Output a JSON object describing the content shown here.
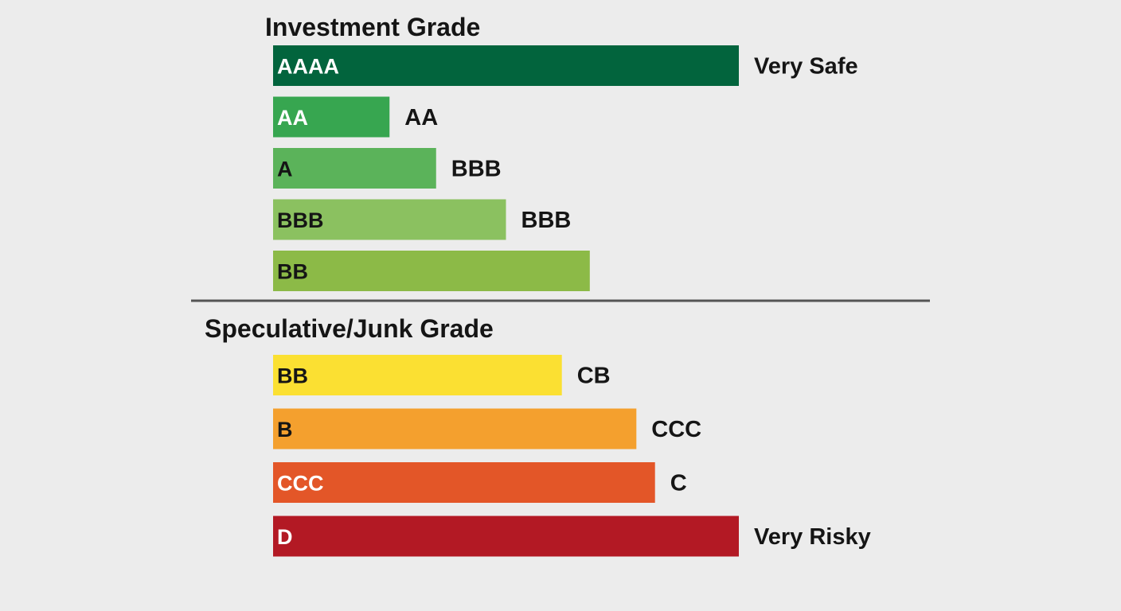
{
  "chart_data": {
    "type": "bar",
    "orientation": "horizontal",
    "groups": [
      {
        "title": "Investment Grade",
        "bars": [
          {
            "label": "AAAA",
            "value": 100,
            "side_label": "Very Safe",
            "color": "#02643d",
            "text_color": "#ffffff"
          },
          {
            "label": "AA",
            "value": 25,
            "side_label": "AA",
            "color": "#37a650",
            "text_color": "#ffffff"
          },
          {
            "label": "A",
            "value": 35,
            "side_label": "BBB",
            "color": "#5bb35a",
            "text_color": "#151515"
          },
          {
            "label": "BBB",
            "value": 50,
            "side_label": "BBB",
            "color": "#8bc160",
            "text_color": "#151515"
          },
          {
            "label": "BB",
            "value": 68,
            "side_label": "",
            "color": "#8cba47",
            "text_color": "#151515"
          }
        ]
      },
      {
        "title": "Speculative/Junk Grade",
        "bars": [
          {
            "label": "BB",
            "value": 62,
            "side_label": "CB",
            "color": "#fbe032",
            "text_color": "#151515"
          },
          {
            "label": "B",
            "value": 78,
            "side_label": "CCC",
            "color": "#f4a02e",
            "text_color": "#151515"
          },
          {
            "label": "CCC",
            "value": 82,
            "side_label": "C",
            "color": "#e35628",
            "text_color": "#ffffff"
          },
          {
            "label": "D",
            "value": 100,
            "side_label": "Very Risky",
            "color": "#b31924",
            "text_color": "#ffffff"
          }
        ]
      }
    ],
    "xlim": [
      0,
      100
    ],
    "grid": false,
    "legend": "none",
    "divider_color": "#555555"
  }
}
